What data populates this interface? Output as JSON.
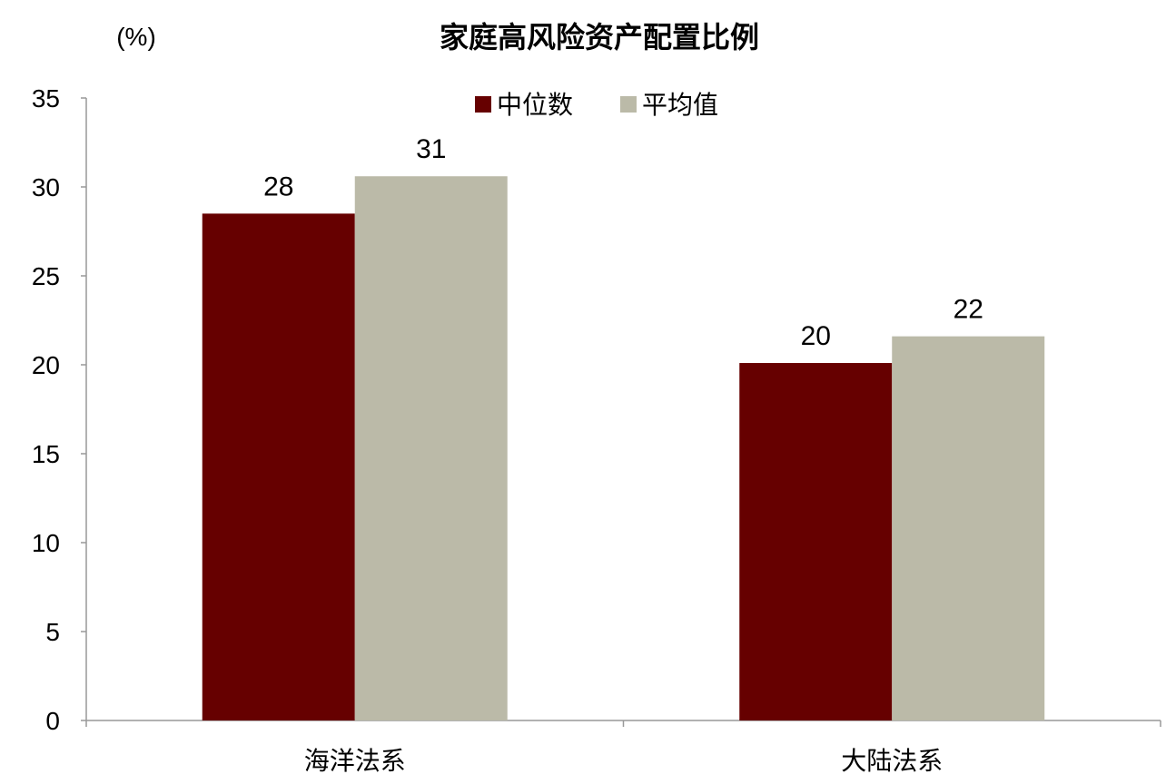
{
  "chart_data": {
    "type": "bar",
    "title": "家庭高风险资产配置比例",
    "ylabel": "(%)",
    "xlabel": "",
    "categories": [
      "海洋法系",
      "大陆法系"
    ],
    "series": [
      {
        "name": "中位数",
        "values": [
          28.5,
          20.1
        ],
        "labels": [
          "28",
          "20"
        ],
        "color": "#660000"
      },
      {
        "name": "平均值",
        "values": [
          30.6,
          21.6
        ],
        "labels": [
          "31",
          "22"
        ],
        "color": "#BBBAA8"
      }
    ],
    "ylim": [
      0,
      35
    ],
    "yticks": [
      0,
      5,
      10,
      15,
      20,
      25,
      30,
      35
    ],
    "grid": false,
    "legend": "top-center"
  }
}
